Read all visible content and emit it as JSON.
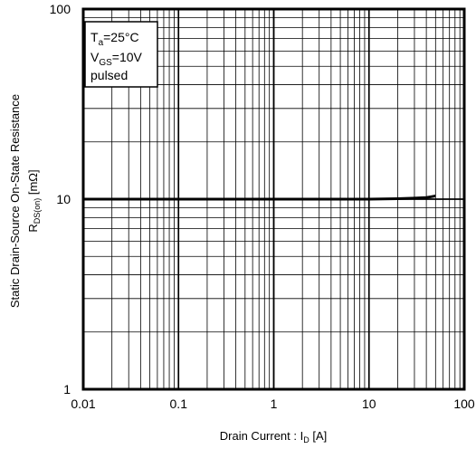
{
  "chart_data": {
    "type": "line",
    "x_scale": "log",
    "y_scale": "log",
    "xlim": [
      0.01,
      100
    ],
    "ylim": [
      1,
      100
    ],
    "grid": true,
    "x_ticks": [
      "0.01",
      "0.1",
      "1",
      "10",
      "100"
    ],
    "y_ticks": [
      "1",
      "10",
      "100"
    ],
    "xlabel": {
      "main": "Drain Current : I",
      "sub": "D",
      "unit": " [A]"
    },
    "ylabel": {
      "line1": "Static Drain-Source On-State Resistance",
      "main": "R",
      "sub": "DS(on)",
      "unit": " [mΩ]"
    },
    "conditions": [
      {
        "main": "T",
        "sub": "a",
        "rest": "=25°C"
      },
      {
        "main": "V",
        "sub": "GS",
        "rest": "=10V"
      },
      {
        "main": "pulsed",
        "sub": "",
        "rest": ""
      }
    ],
    "series": [
      {
        "x": [
          0.01,
          0.03,
          0.1,
          0.3,
          1,
          3,
          10,
          20,
          30,
          40,
          45,
          50
        ],
        "y": [
          10,
          10,
          10,
          10,
          10,
          10,
          10,
          10.05,
          10.12,
          10.2,
          10.3,
          10.4
        ],
        "color": "#000000"
      }
    ]
  }
}
